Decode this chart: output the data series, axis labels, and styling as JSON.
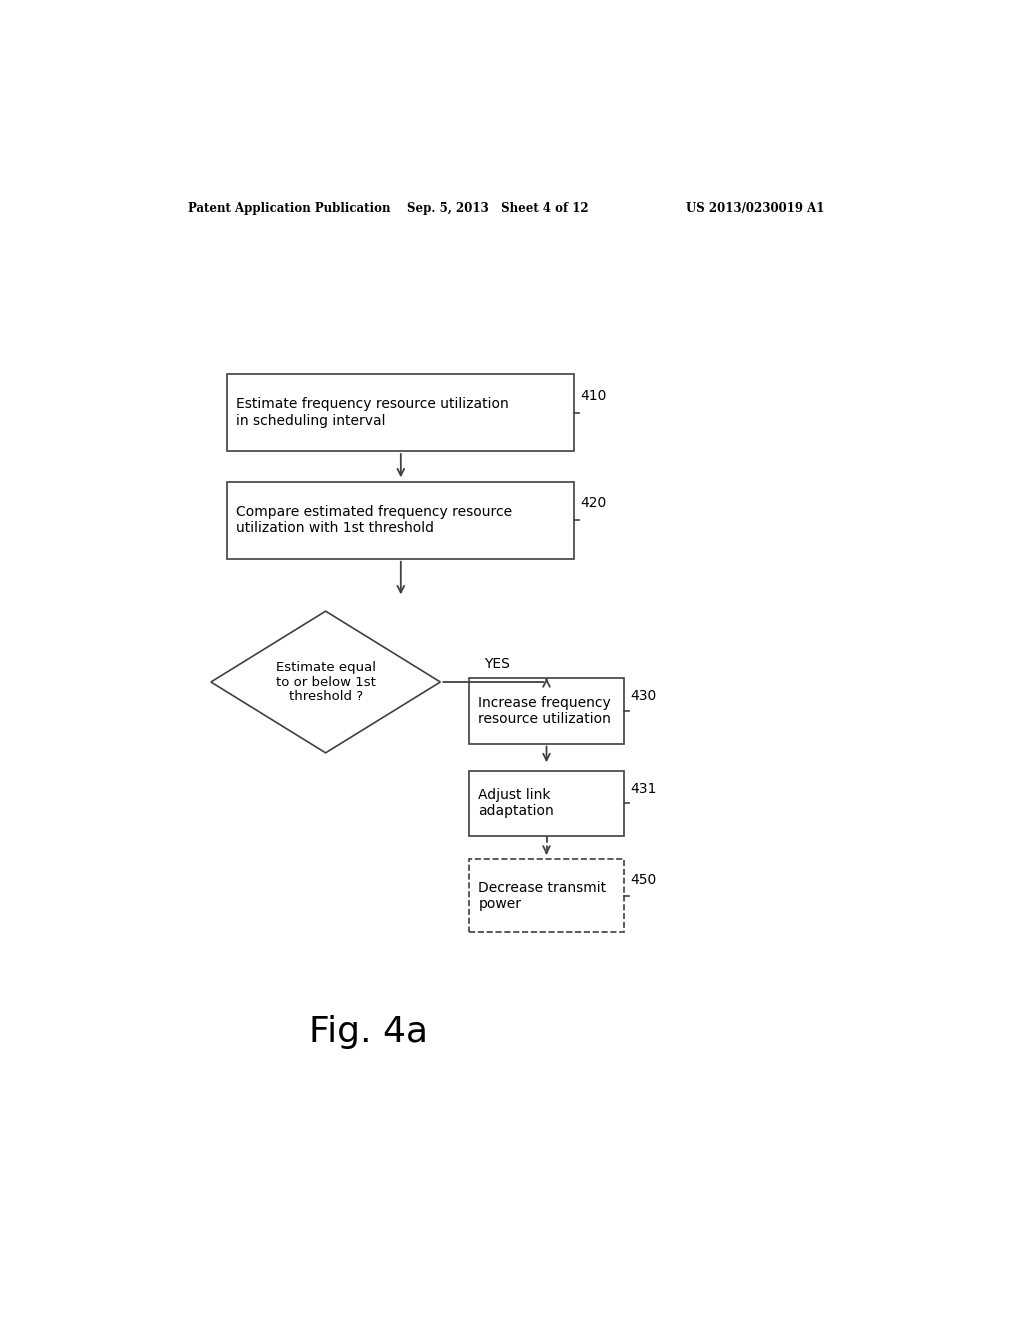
{
  "bg_color": "#ffffff",
  "header_left": "Patent Application Publication",
  "header_mid": "Sep. 5, 2013   Sheet 4 of 12",
  "header_right": "US 2013/0230019 A1",
  "fig_label": "Fig. 4a",
  "box410_text": "Estimate frequency resource utilization\nin scheduling interval",
  "box410_label": "410",
  "box420_text": "Compare estimated frequency resource\nutilization with 1st threshold",
  "box420_label": "420",
  "diamond_text": "Estimate equal\nto or below 1st\nthreshold ?",
  "yes_label": "YES",
  "box430_text": "Increase frequency\nresource utilization",
  "box430_label": "430",
  "box431_text": "Adjust link\nadaptation",
  "box431_label": "431",
  "box450_text": "Decrease transmit\npower",
  "box450_label": "450"
}
